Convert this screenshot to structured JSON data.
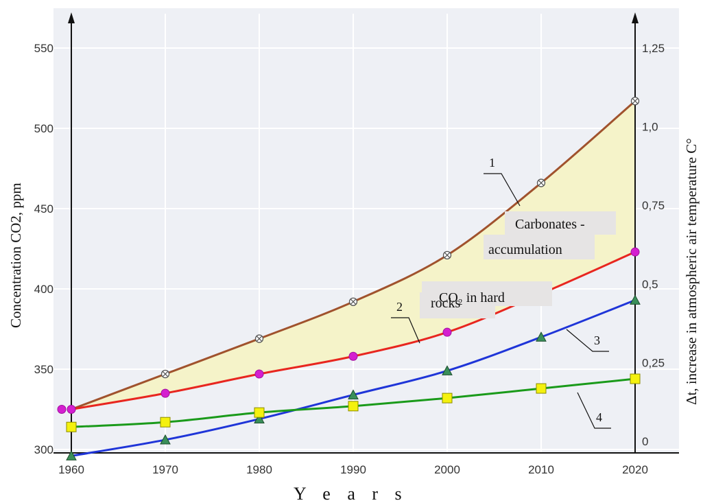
{
  "chart_data": {
    "type": "line",
    "x": [
      1960,
      1970,
      1980,
      1990,
      2000,
      2010,
      2020
    ],
    "xlabel": "Y e a r s",
    "ylabel_left": "Concentration CO2, ppm",
    "ylabel_right": "Δt, increase in atmospheric air temperature C°",
    "ylim_left": [
      300,
      550
    ],
    "yticks_left": [
      "300",
      "350",
      "400",
      "450",
      "500",
      "550"
    ],
    "ylim_right": [
      0,
      1.25
    ],
    "yticks_right": [
      "0",
      "0,25",
      "0,5",
      "0,75",
      "1,0",
      "1,25"
    ],
    "grid": true,
    "series": [
      {
        "name": "1",
        "axis": "left",
        "color": "#a0522d",
        "marker": "circle-cross",
        "values": [
          325,
          347,
          369,
          392,
          421,
          466,
          517
        ]
      },
      {
        "name": "2",
        "axis": "left",
        "color": "#e8261f",
        "marker": "circle-magenta",
        "values": [
          325,
          335,
          347,
          358,
          373,
          397,
          423
        ]
      },
      {
        "name": "3",
        "axis": "left",
        "color": "#1f35d8",
        "marker": "triangle",
        "values": [
          296,
          306,
          319,
          334,
          349,
          370,
          393
        ]
      },
      {
        "name": "4",
        "axis": "left",
        "color": "#1a9a1a",
        "marker": "square",
        "values": [
          314,
          317,
          323,
          327,
          332,
          338,
          344
        ]
      }
    ],
    "annotations": [
      {
        "label": "carbonates-annotation",
        "lines": [
          "Carbonates -",
          "accumulation"
        ]
      },
      {
        "label": "co2-rocks-annotation",
        "lines": [
          "CO₂ in hard",
          "rocks"
        ]
      }
    ],
    "series_labels": [
      "1",
      "2",
      "3",
      "4"
    ]
  },
  "colors": {
    "fill_area": "#f4f2c6",
    "plot_bg": "#eef0f5",
    "grid": "#ffffff",
    "annotation_bg": "#e6e4e4"
  }
}
